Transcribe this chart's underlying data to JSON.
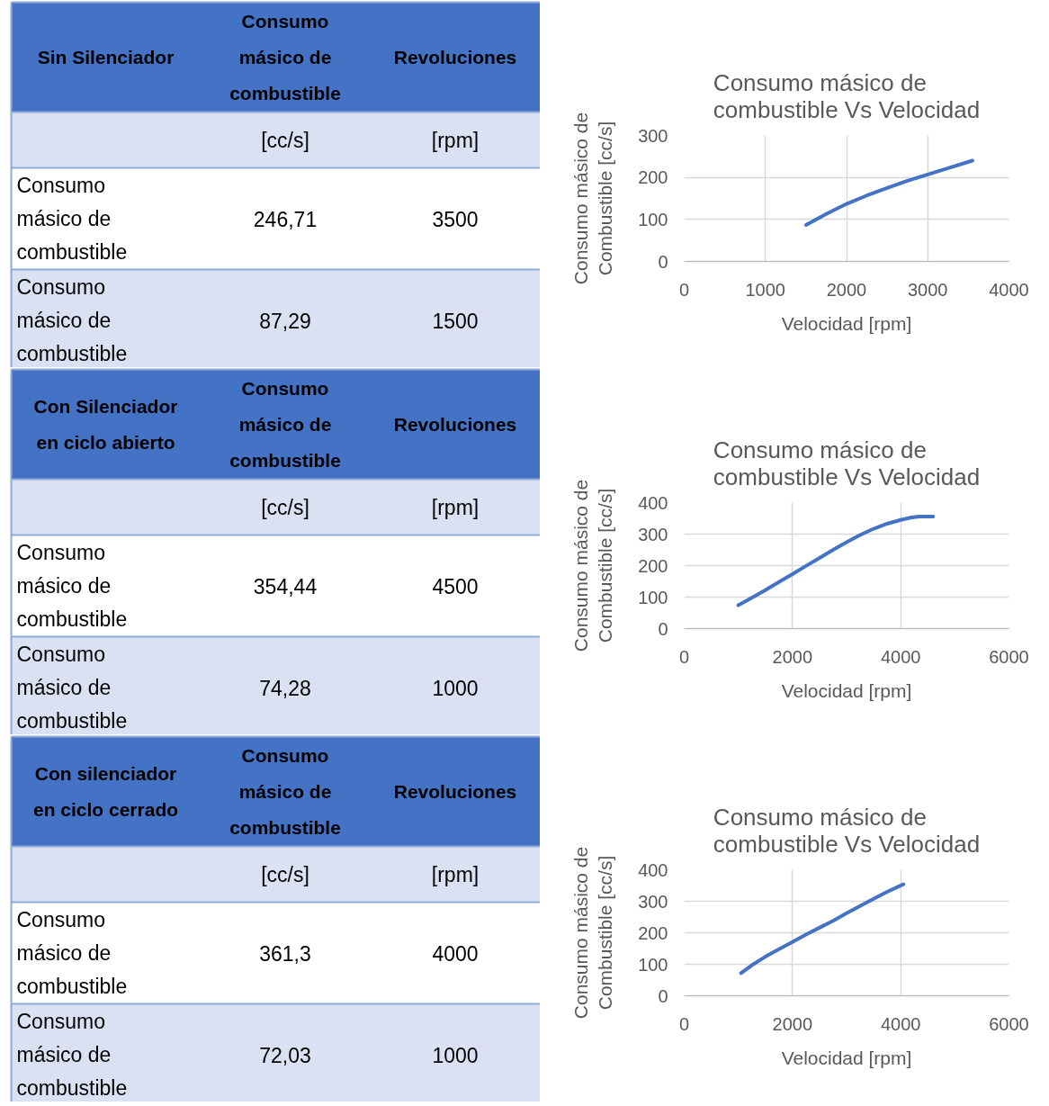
{
  "chart_data": [
    {
      "type": "other",
      "categories": [
        "Sin Silenciador",
        "Consumo másico de combustible",
        "Revoluciones"
      ],
      "y_categories": [
        null,
        "Consumo másico de combustible",
        "Consumo másico de combustible"
      ],
      "cell_labels": [
        [
          "[cc/s]",
          "[rpm]"
        ],
        [
          "246,71",
          "3500"
        ],
        [
          "87,29",
          "1500"
        ]
      ]
    },
    {
      "type": "line",
      "title": "Consumo másico de combustible Vs Velocidad",
      "xlabel": "Velocidad [rpm]",
      "ylabel": "Consumo másico de Combustible [cc/s]",
      "x": [
        1500,
        1750,
        2000,
        2250,
        2500,
        2750,
        3000,
        3250,
        3550
      ],
      "series": [
        {
          "color": "#4472c4",
          "values": [
            87,
            113,
            137,
            157,
            175,
            192,
            207,
            222,
            240
          ]
        }
      ],
      "xlim": [
        0,
        4000
      ],
      "xticks": [
        0,
        1000,
        2000,
        3000,
        4000
      ],
      "ylim": [
        0,
        300
      ],
      "yticks": [
        0,
        100,
        200,
        300
      ],
      "grid": true
    },
    {
      "type": "other",
      "categories": [
        "Con Silenciador en ciclo abierto",
        "Consumo másico de combustible",
        "Revoluciones"
      ],
      "y_categories": [
        null,
        "Consumo másico de combustible",
        "Consumo másico de combustible"
      ],
      "cell_labels": [
        [
          "[cc/s]",
          "[rpm]"
        ],
        [
          "354,44",
          "4500"
        ],
        [
          "74,28",
          "1000"
        ]
      ]
    },
    {
      "type": "line",
      "title": "Consumo másico de combustible Vs Velocidad",
      "xlabel": "Velocidad [rpm]",
      "ylabel": "Consumo másico de Combustible [cc/s]",
      "x": [
        1000,
        1250,
        1500,
        1750,
        2000,
        2250,
        2500,
        2750,
        3000,
        3250,
        3500,
        3750,
        4000,
        4200,
        4350,
        4600
      ],
      "series": [
        {
          "color": "#4472c4",
          "values": [
            74,
            98,
            122,
            148,
            173,
            199,
            224,
            250,
            274,
            297,
            317,
            333,
            345,
            353,
            356,
            356
          ]
        }
      ],
      "xlim": [
        0,
        6000
      ],
      "xticks": [
        0,
        2000,
        4000,
        6000
      ],
      "ylim": [
        0,
        400
      ],
      "yticks": [
        0,
        100,
        200,
        300,
        400
      ],
      "grid": true
    },
    {
      "type": "other",
      "categories": [
        "Con silenciador en ciclo cerrado",
        "Consumo másico de combustible",
        "Revoluciones"
      ],
      "y_categories": [
        null,
        "Consumo másico de combustible",
        "Consumo másico de combustible"
      ],
      "cell_labels": [
        [
          "[cc/s]",
          "[rpm]"
        ],
        [
          "361,3",
          "4000"
        ],
        [
          "72,03",
          "1000"
        ]
      ]
    },
    {
      "type": "line",
      "title": "Consumo másico de combustible Vs Velocidad",
      "xlabel": "Velocidad [rpm]",
      "ylabel": "Consumo másico de Combustible [cc/s]",
      "x": [
        1050,
        1250,
        1500,
        1750,
        2000,
        2250,
        2500,
        2750,
        3000,
        3250,
        3500,
        3750,
        4050
      ],
      "series": [
        {
          "color": "#4472c4",
          "values": [
            72,
            97,
            124,
            148,
            171,
            194,
            216,
            238,
            262,
            285,
            308,
            330,
            354
          ]
        }
      ],
      "xlim": [
        0,
        6000
      ],
      "xticks": [
        0,
        2000,
        4000,
        6000
      ],
      "ylim": [
        0,
        400
      ],
      "yticks": [
        0,
        100,
        200,
        300,
        400
      ],
      "grid": true
    }
  ]
}
